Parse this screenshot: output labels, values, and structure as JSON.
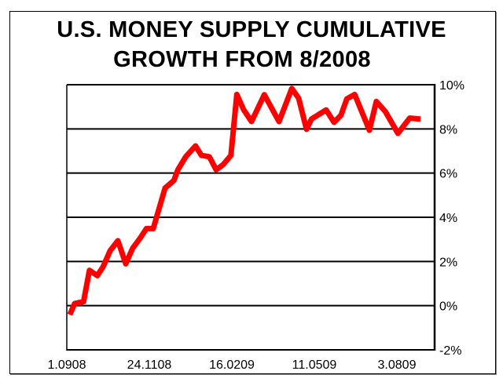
{
  "chart_data": {
    "type": "line",
    "title": [
      "U.S. MONEY SUPPLY CUMULATIVE",
      "GROWTH FROM 8/2008"
    ],
    "xlabel": "",
    "ylabel": "",
    "x_tick_labels": [
      "1.0908",
      "24.1108",
      "16.0209",
      "11.0509",
      "3.0809"
    ],
    "x_tick_dates": [
      "2008-09-01",
      "2008-11-24",
      "2009-02-16",
      "2009-05-11",
      "2009-08-03"
    ],
    "xlim": [
      "2008-09-01",
      "2009-09-10"
    ],
    "y_tick_labels": [
      "10%",
      "8%",
      "6%",
      "4%",
      "2%",
      "0%",
      "-2%"
    ],
    "ylim": [
      -2,
      10
    ],
    "y_axis_position": "right",
    "grid": "horizontal",
    "legend": "none",
    "series_color": "#ff0000",
    "points": [
      [
        "2008-09-04",
        -0.41
      ],
      [
        "2008-09-09",
        0.1
      ],
      [
        "2008-09-18",
        0.18
      ],
      [
        "2008-09-24",
        1.6
      ],
      [
        "2008-10-02",
        1.36
      ],
      [
        "2008-10-08",
        1.77
      ],
      [
        "2008-10-15",
        2.48
      ],
      [
        "2008-10-23",
        2.94
      ],
      [
        "2008-10-31",
        1.89
      ],
      [
        "2008-11-07",
        2.6
      ],
      [
        "2008-11-15",
        3.08
      ],
      [
        "2008-11-21",
        3.49
      ],
      [
        "2008-11-28",
        3.49
      ],
      [
        "2008-12-03",
        4.26
      ],
      [
        "2008-12-10",
        5.32
      ],
      [
        "2008-12-19",
        5.67
      ],
      [
        "2008-12-23",
        6.15
      ],
      [
        "2008-12-31",
        6.74
      ],
      [
        "2009-01-10",
        7.23
      ],
      [
        "2009-01-16",
        6.8
      ],
      [
        "2009-01-24",
        6.74
      ],
      [
        "2009-01-31",
        6.15
      ],
      [
        "2009-02-07",
        6.38
      ],
      [
        "2009-02-15",
        6.8
      ],
      [
        "2009-02-21",
        9.56
      ],
      [
        "2009-02-28",
        8.87
      ],
      [
        "2009-03-08",
        8.33
      ],
      [
        "2009-03-21",
        9.55
      ],
      [
        "2009-04-05",
        8.33
      ],
      [
        "2009-04-18",
        9.83
      ],
      [
        "2009-04-25",
        9.39
      ],
      [
        "2009-05-03",
        7.98
      ],
      [
        "2009-05-08",
        8.45
      ],
      [
        "2009-05-23",
        8.86
      ],
      [
        "2009-05-31",
        8.3
      ],
      [
        "2009-06-07",
        8.62
      ],
      [
        "2009-06-13",
        9.36
      ],
      [
        "2009-06-21",
        9.56
      ],
      [
        "2009-07-06",
        7.94
      ],
      [
        "2009-07-13",
        9.24
      ],
      [
        "2009-07-22",
        8.8
      ],
      [
        "2009-08-04",
        7.8
      ],
      [
        "2009-08-16",
        8.49
      ],
      [
        "2009-08-27",
        8.44
      ]
    ]
  }
}
